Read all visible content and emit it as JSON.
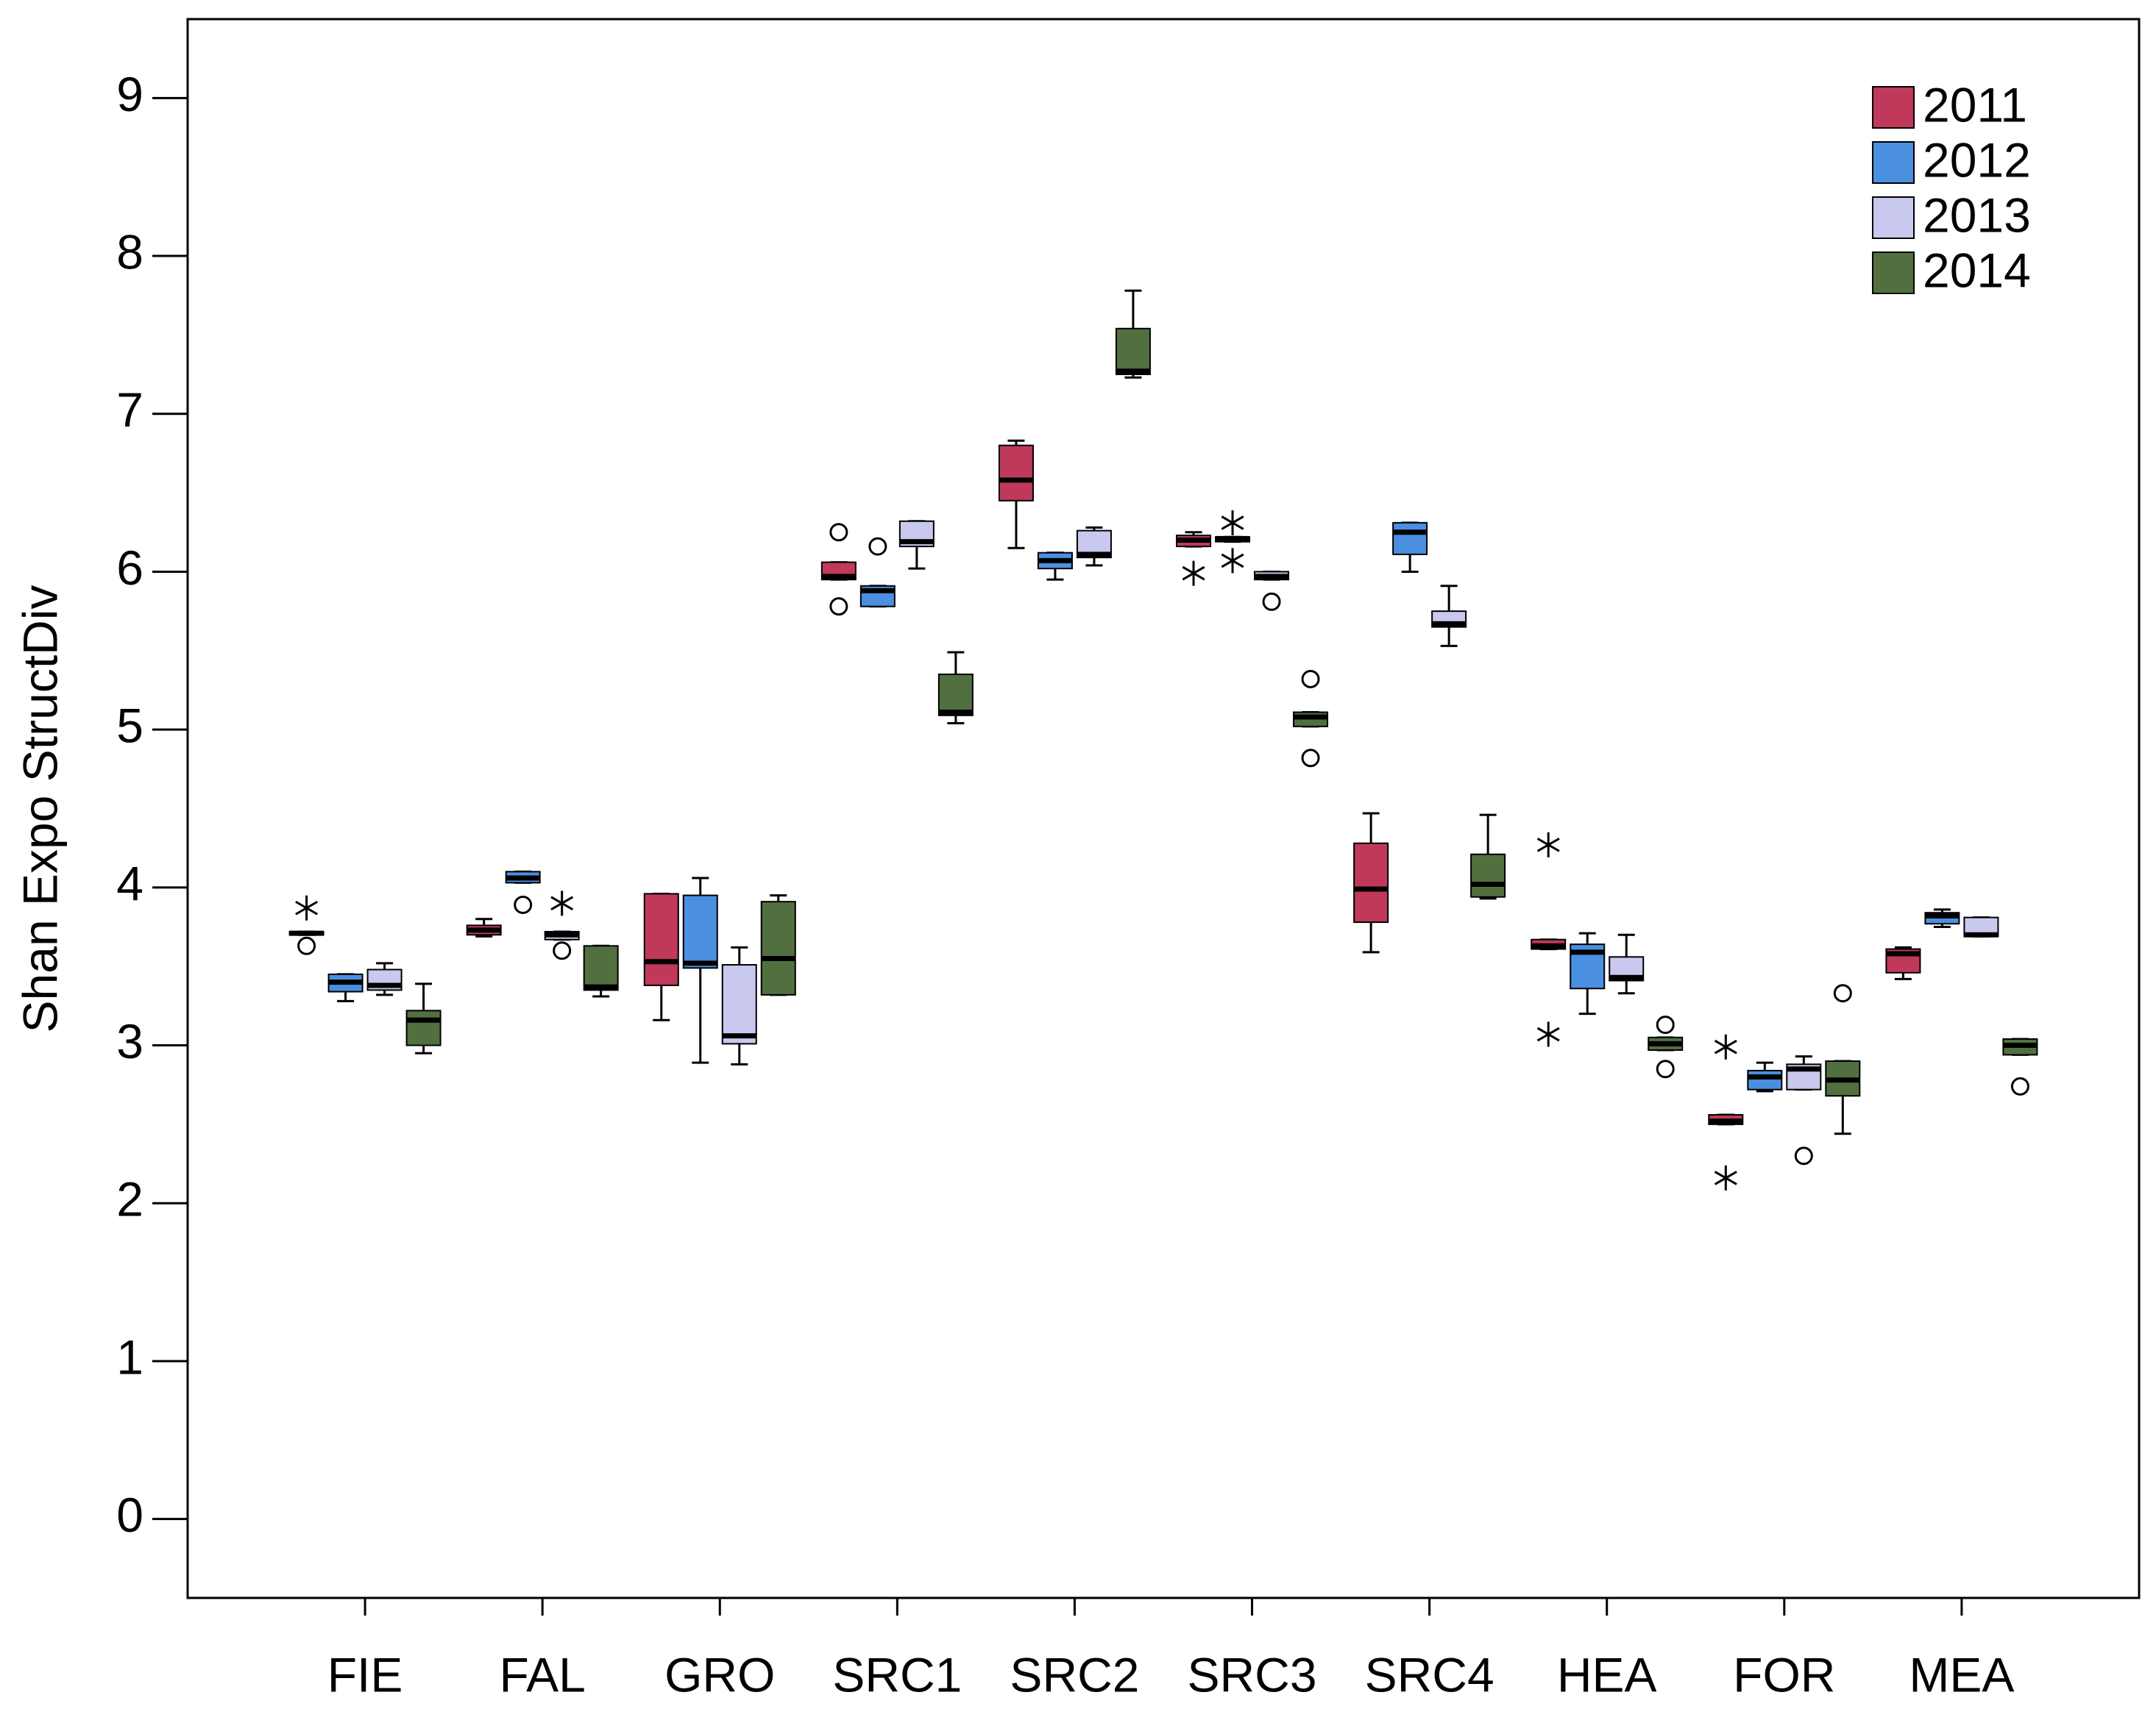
{
  "chart_data": {
    "type": "box",
    "y_label": "Shan Expo StructDiv",
    "categories": [
      "FIE",
      "FAL",
      "GRO",
      "SRC1",
      "SRC2",
      "SRC3",
      "SRC4",
      "HEA",
      "FOR",
      "MEA"
    ],
    "ylim": [
      -0.5,
      9.5
    ],
    "yticks": [
      0,
      1,
      2,
      3,
      4,
      5,
      6,
      7,
      8,
      9
    ],
    "legend": "upper right",
    "series": [
      {
        "name": "2011",
        "color": "#c0395a",
        "boxes": [
          {
            "min": 3.7,
            "q1": 3.7,
            "median": 3.71,
            "q3": 3.72,
            "max": 3.72,
            "outliers": [
              3.63
            ],
            "extremes": [
              3.87
            ]
          },
          {
            "min": 3.69,
            "q1": 3.7,
            "median": 3.73,
            "q3": 3.76,
            "max": 3.8
          },
          {
            "min": 3.16,
            "q1": 3.38,
            "median": 3.53,
            "q3": 3.96,
            "max": 3.96
          },
          {
            "min": 5.95,
            "q1": 5.95,
            "median": 5.97,
            "q3": 6.06,
            "max": 6.06,
            "outliers": [
              6.25,
              5.78
            ]
          },
          {
            "min": 6.15,
            "q1": 6.45,
            "median": 6.58,
            "q3": 6.8,
            "max": 6.83
          },
          {
            "min": 6.16,
            "q1": 6.16,
            "median": 6.2,
            "q3": 6.23,
            "max": 6.25,
            "extremes": [
              5.99
            ]
          },
          {
            "min": 3.59,
            "q1": 3.78,
            "median": 3.99,
            "q3": 4.28,
            "max": 4.47
          },
          {
            "min": 3.61,
            "q1": 3.61,
            "median": 3.63,
            "q3": 3.67,
            "max": 3.67,
            "extremes": [
              4.27,
              3.07
            ]
          },
          {
            "min": 2.5,
            "q1": 2.5,
            "median": 2.52,
            "q3": 2.56,
            "max": 2.56,
            "extremes": [
              2.99,
              2.16
            ]
          },
          {
            "min": 3.42,
            "q1": 3.46,
            "median": 3.58,
            "q3": 3.61,
            "max": 3.62
          }
        ]
      },
      {
        "name": "2012",
        "color": "#4a8fe0",
        "boxes": [
          {
            "min": 3.28,
            "q1": 3.34,
            "median": 3.4,
            "q3": 3.45,
            "max": 3.45
          },
          {
            "min": 4.03,
            "q1": 4.03,
            "median": 4.06,
            "q3": 4.1,
            "max": 4.1,
            "outliers": [
              3.89
            ]
          },
          {
            "min": 2.89,
            "q1": 3.49,
            "median": 3.52,
            "q3": 3.95,
            "max": 4.06
          },
          {
            "min": 5.78,
            "q1": 5.78,
            "median": 5.88,
            "q3": 5.91,
            "max": 5.91,
            "outliers": [
              6.16
            ]
          },
          {
            "min": 5.95,
            "q1": 6.02,
            "median": 6.07,
            "q3": 6.12,
            "max": 6.12
          },
          {
            "min": 6.19,
            "q1": 6.19,
            "median": 6.21,
            "q3": 6.22,
            "max": 6.22,
            "extremes": [
              6.31,
              6.07
            ]
          },
          {
            "min": 6.0,
            "q1": 6.11,
            "median": 6.25,
            "q3": 6.31,
            "max": 6.31
          },
          {
            "min": 3.2,
            "q1": 3.36,
            "median": 3.59,
            "q3": 3.64,
            "max": 3.71
          },
          {
            "min": 2.71,
            "q1": 2.72,
            "median": 2.8,
            "q3": 2.84,
            "max": 2.89
          },
          {
            "min": 3.75,
            "q1": 3.77,
            "median": 3.82,
            "q3": 3.84,
            "max": 3.86
          }
        ]
      },
      {
        "name": "2013",
        "color": "#c9c8ef",
        "boxes": [
          {
            "min": 3.32,
            "q1": 3.35,
            "median": 3.38,
            "q3": 3.48,
            "max": 3.52
          },
          {
            "min": 3.67,
            "q1": 3.67,
            "median": 3.7,
            "q3": 3.72,
            "max": 3.72,
            "outliers": [
              3.6
            ],
            "extremes": [
              3.9
            ]
          },
          {
            "min": 2.88,
            "q1": 3.01,
            "median": 3.06,
            "q3": 3.51,
            "max": 3.62
          },
          {
            "min": 6.02,
            "q1": 6.16,
            "median": 6.19,
            "q3": 6.32,
            "max": 6.32
          },
          {
            "min": 6.04,
            "q1": 6.09,
            "median": 6.11,
            "q3": 6.26,
            "max": 6.28
          },
          {
            "min": 5.95,
            "q1": 5.95,
            "median": 5.97,
            "q3": 6.0,
            "max": 6.0,
            "outliers": [
              5.81
            ]
          },
          {
            "min": 5.53,
            "q1": 5.65,
            "median": 5.67,
            "q3": 5.75,
            "max": 5.91
          },
          {
            "min": 3.33,
            "q1": 3.41,
            "median": 3.43,
            "q3": 3.56,
            "max": 3.7
          },
          {
            "min": 2.72,
            "q1": 2.72,
            "median": 2.85,
            "q3": 2.88,
            "max": 2.93,
            "outliers": [
              2.3
            ]
          },
          {
            "min": 3.69,
            "q1": 3.69,
            "median": 3.7,
            "q3": 3.81,
            "max": 3.81
          }
        ]
      },
      {
        "name": "2014",
        "color": "#52703f",
        "boxes": [
          {
            "min": 2.95,
            "q1": 3.0,
            "median": 3.16,
            "q3": 3.22,
            "max": 3.39
          },
          {
            "min": 3.31,
            "q1": 3.35,
            "median": 3.37,
            "q3": 3.63,
            "max": 3.63
          },
          {
            "min": 3.32,
            "q1": 3.32,
            "median": 3.55,
            "q3": 3.91,
            "max": 3.95
          },
          {
            "min": 5.04,
            "q1": 5.09,
            "median": 5.11,
            "q3": 5.35,
            "max": 5.49
          },
          {
            "min": 7.23,
            "q1": 7.25,
            "median": 7.27,
            "q3": 7.54,
            "max": 7.78
          },
          {
            "min": 5.02,
            "q1": 5.02,
            "median": 5.08,
            "q3": 5.11,
            "max": 5.11,
            "outliers": [
              5.32,
              4.82
            ]
          },
          {
            "min": 3.93,
            "q1": 3.94,
            "median": 4.02,
            "q3": 4.21,
            "max": 4.46
          },
          {
            "min": 2.97,
            "q1": 2.97,
            "median": 3.01,
            "q3": 3.05,
            "max": 3.05,
            "outliers": [
              3.13,
              2.85
            ]
          },
          {
            "min": 2.44,
            "q1": 2.68,
            "median": 2.78,
            "q3": 2.9,
            "max": 2.9,
            "outliers": [
              3.33
            ]
          },
          {
            "min": 2.94,
            "q1": 2.94,
            "median": 3.0,
            "q3": 3.04,
            "max": 3.04,
            "outliers": [
              2.74
            ]
          }
        ]
      }
    ]
  }
}
